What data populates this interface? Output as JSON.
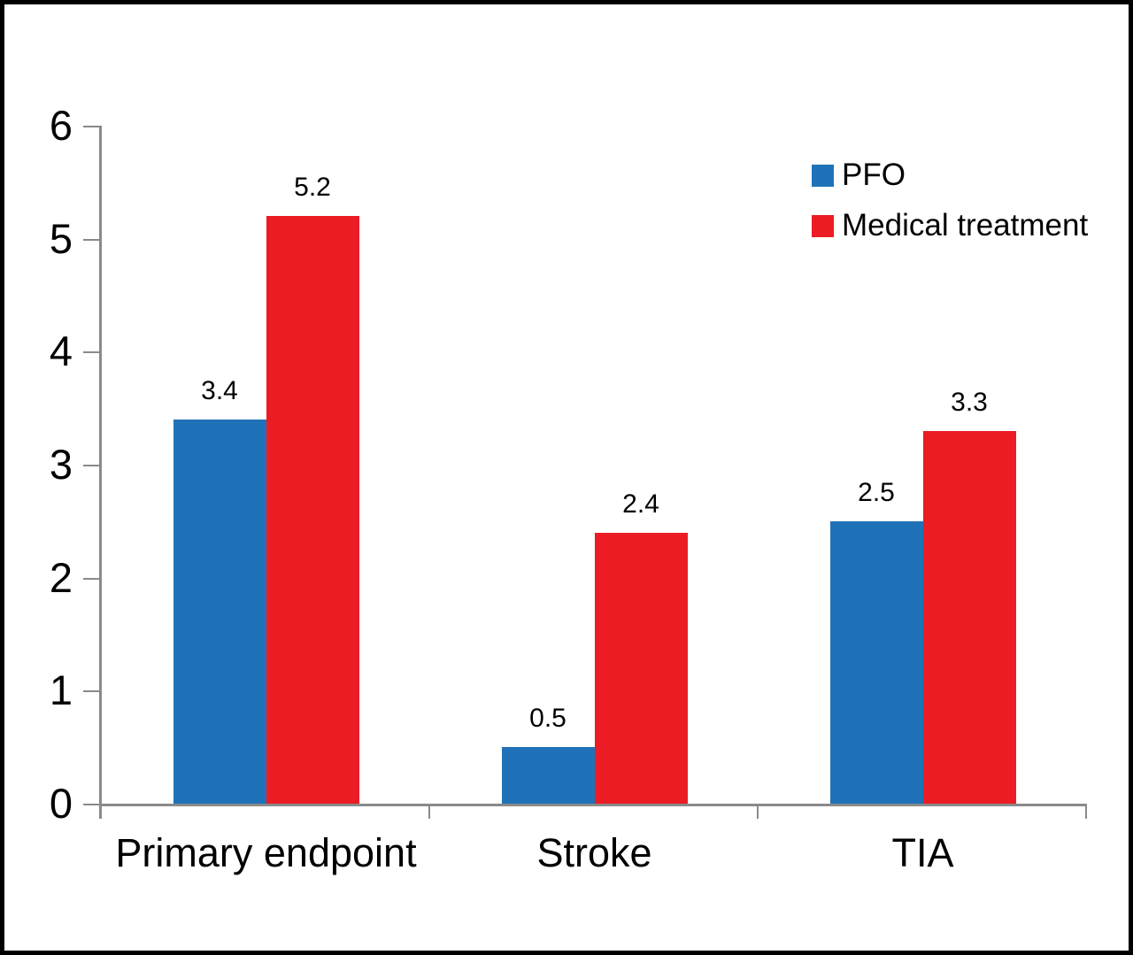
{
  "figure": {
    "background": "#ffffff",
    "border_color": "#000000"
  },
  "chart_data": {
    "type": "bar",
    "title": "",
    "xlabel": "",
    "ylabel": "",
    "categories": [
      "Primary endpoint",
      "Stroke",
      "TIA"
    ],
    "series": [
      {
        "name": "PFO",
        "color": "#2072B8",
        "values": [
          3.4,
          0.5,
          2.5
        ]
      },
      {
        "name": "Medical treatment",
        "color": "#EC1C24",
        "values": [
          5.2,
          2.4,
          3.3
        ]
      }
    ],
    "data_labels_shown": true,
    "yticks": [
      0,
      1,
      2,
      3,
      4,
      5,
      6
    ],
    "ylim": [
      0,
      6
    ],
    "grid": false,
    "legend_position": "top-right",
    "axis_color": "#8A8A8A",
    "text_color": "#000000"
  }
}
